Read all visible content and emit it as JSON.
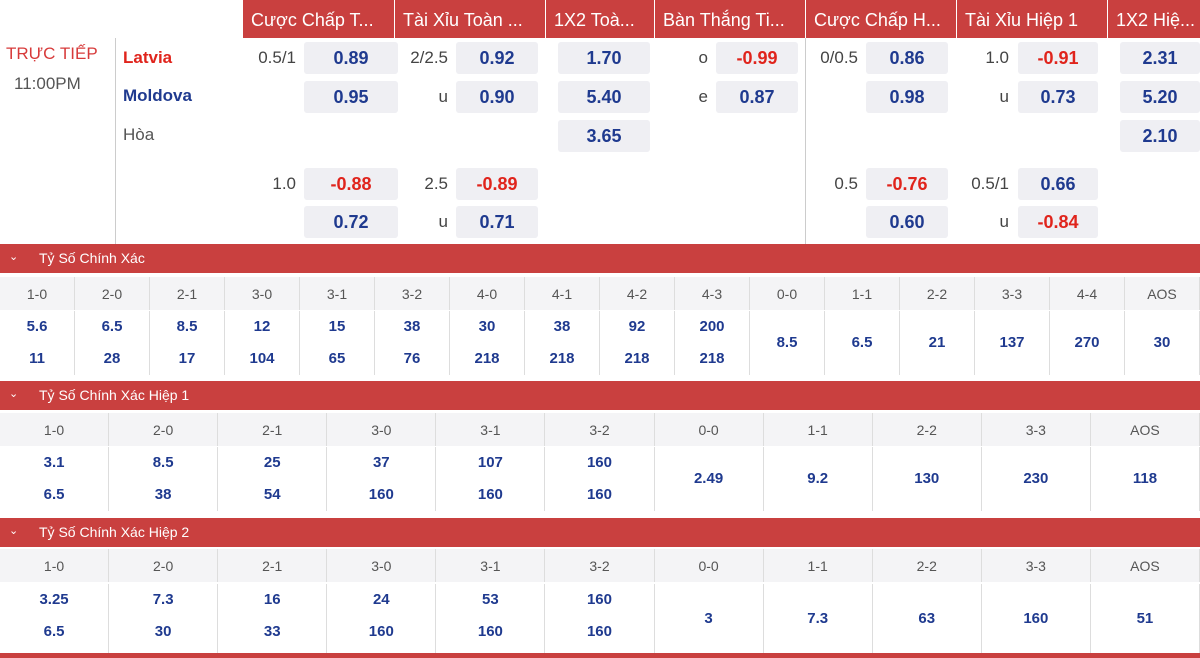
{
  "header": {
    "tabs": [
      "Cược Chấp T...",
      "Tài Xỉu Toàn ...",
      "1X2 Toà...",
      "Bàn Thắng Ti...",
      "Cược Chấp H...",
      "Tài Xỉu Hiệp 1",
      "1X2 Hiệ..."
    ]
  },
  "match": {
    "status": "TRỰC TIẾP",
    "time": "11:00PM",
    "home": "Latvia",
    "away": "Moldova",
    "draw": "Hòa"
  },
  "rows": {
    "r1": {
      "hcp": "0.5/1",
      "hcp_home": "0.89",
      "ou": "2/2.5",
      "ou_over": "0.92",
      "x1": "1.70",
      "tg": "o",
      "tg_o": "-0.99",
      "h1hcp": "0/0.5",
      "h1hcp_home": "0.86",
      "h1ou": "1.0",
      "h1ou_over": "-0.91",
      "h1x1": "2.31"
    },
    "r2": {
      "hcp_away": "0.95",
      "ou": "u",
      "ou_under": "0.90",
      "x2": "5.40",
      "tg": "e",
      "tg_e": "0.87",
      "h1hcp_away": "0.98",
      "h1ou": "u",
      "h1ou_under": "0.73",
      "h1x2": "5.20"
    },
    "r3": {
      "xd": "3.65",
      "h1xd": "2.10"
    },
    "r4": {
      "hcp": "1.0",
      "hcp_home": "-0.88",
      "ou": "2.5",
      "ou_over": "-0.89",
      "h1hcp": "0.5",
      "h1hcp_home": "-0.76",
      "h1ou": "0.5/1",
      "h1ou_over": "0.66"
    },
    "r5": {
      "hcp_away": "0.72",
      "ou": "u",
      "ou_under": "0.71",
      "h1hcp_away": "0.60",
      "h1ou": "u",
      "h1ou_under": "-0.84"
    }
  },
  "sections": [
    {
      "title": "Tỷ Số Chính Xác",
      "cols": [
        "1-0",
        "2-0",
        "2-1",
        "3-0",
        "3-1",
        "3-2",
        "4-0",
        "4-1",
        "4-2",
        "4-3",
        "0-0",
        "1-1",
        "2-2",
        "3-3",
        "4-4",
        "AOS"
      ],
      "top": [
        "5.6",
        "6.5",
        "8.5",
        "12",
        "15",
        "38",
        "30",
        "38",
        "92",
        "200"
      ],
      "bottom": [
        "11",
        "28",
        "17",
        "104",
        "65",
        "76",
        "218",
        "218",
        "218",
        "218"
      ],
      "single": [
        "8.5",
        "6.5",
        "21",
        "137",
        "270",
        "30"
      ]
    },
    {
      "title": "Tỷ Số Chính Xác Hiệp 1",
      "cols": [
        "1-0",
        "2-0",
        "2-1",
        "3-0",
        "3-1",
        "3-2",
        "0-0",
        "1-1",
        "2-2",
        "3-3",
        "AOS"
      ],
      "top": [
        "3.1",
        "8.5",
        "25",
        "37",
        "107",
        "160"
      ],
      "bottom": [
        "6.5",
        "38",
        "54",
        "160",
        "160",
        "160"
      ],
      "single": [
        "2.49",
        "9.2",
        "130",
        "230",
        "118"
      ]
    },
    {
      "title": "Tỷ Số Chính Xác Hiệp 2",
      "cols": [
        "1-0",
        "2-0",
        "2-1",
        "3-0",
        "3-1",
        "3-2",
        "0-0",
        "1-1",
        "2-2",
        "3-3",
        "AOS"
      ],
      "top": [
        "3.25",
        "7.3",
        "16",
        "24",
        "53",
        "160"
      ],
      "bottom": [
        "6.5",
        "30",
        "33",
        "160",
        "160",
        "160"
      ],
      "single": [
        "3",
        "7.3",
        "63",
        "160",
        "51"
      ]
    }
  ]
}
